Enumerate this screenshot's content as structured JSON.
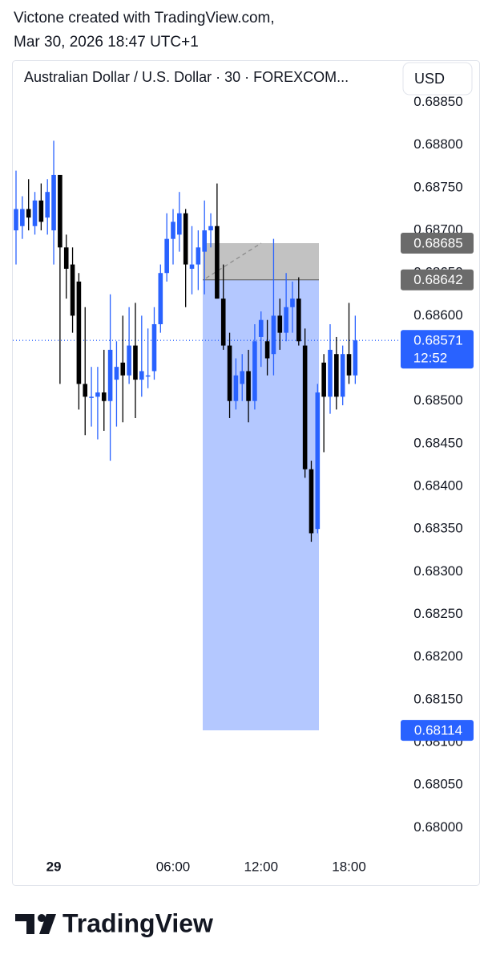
{
  "header": {
    "line1": "Victone created with TradingView.com,",
    "line2": "Mar 30, 2026 18:47 UTC+1"
  },
  "chart_data": {
    "type": "candlestick",
    "title": "Australian Dollar / U.S. Dollar · 30 · FOREXCOM...",
    "currency": "USD",
    "categories": [
      null,
      null,
      null,
      null,
      null,
      null,
      "29",
      null,
      null,
      null,
      null,
      null,
      null,
      null,
      null,
      null,
      null,
      null,
      null,
      null,
      null,
      null,
      null,
      null,
      null,
      "06:00",
      null,
      null,
      null,
      null,
      null,
      null,
      null,
      null,
      null,
      null,
      null,
      null,
      null,
      "12:00",
      null,
      null,
      null,
      null,
      null,
      null,
      null,
      null,
      null,
      null,
      null,
      null,
      null,
      "18:00",
      null
    ],
    "open": [
      0.687,
      0.68705,
      0.68725,
      0.68705,
      0.68735,
      0.68715,
      0.687,
      0.68765,
      0.6868,
      0.6866,
      0.6864,
      0.6852,
      0.68505,
      0.68505,
      0.6851,
      0.685,
      0.68525,
      0.68545,
      0.6853,
      0.68565,
      0.68525,
      0.6853,
      0.68535,
      0.6859,
      0.6865,
      0.6869,
      0.68695,
      0.6872,
      0.68655,
      0.6866,
      0.68675,
      0.687,
      0.68705,
      0.6862,
      0.68565,
      0.685,
      0.6852,
      0.68535,
      0.685,
      0.68575,
      0.6857,
      0.68555,
      0.686,
      0.6858,
      0.6861,
      0.6862,
      0.68565,
      0.6842,
      0.6835,
      0.68545,
      0.68505,
      0.68555,
      0.68505,
      0.68555,
      0.6853
    ],
    "high": [
      0.6877,
      0.6874,
      0.6876,
      0.68745,
      0.68755,
      0.6876,
      0.68805,
      0.68765,
      0.68695,
      0.6868,
      0.6865,
      0.6861,
      0.6854,
      0.6854,
      0.6856,
      0.68625,
      0.6857,
      0.686,
      0.6861,
      0.68615,
      0.686,
      0.68585,
      0.6861,
      0.6866,
      0.6872,
      0.68725,
      0.68745,
      0.68725,
      0.68705,
      0.687,
      0.68735,
      0.6872,
      0.68755,
      0.6866,
      0.6858,
      0.6855,
      0.68555,
      0.6856,
      0.6859,
      0.68605,
      0.68595,
      0.6869,
      0.6862,
      0.6865,
      0.6864,
      0.68645,
      0.68585,
      0.6843,
      0.6852,
      0.68555,
      0.6859,
      0.68575,
      0.68565,
      0.68615,
      0.686
    ],
    "low": [
      0.6866,
      0.6869,
      0.687,
      0.68695,
      0.687,
      0.68695,
      0.6866,
      0.6852,
      0.6862,
      0.6858,
      0.6849,
      0.6846,
      0.6847,
      0.68455,
      0.68465,
      0.6843,
      0.6847,
      0.68475,
      0.6852,
      0.6848,
      0.68505,
      0.68515,
      0.68525,
      0.6858,
      0.6864,
      0.6866,
      0.68675,
      0.6861,
      0.68625,
      0.6863,
      0.68625,
      0.6868,
      0.6862,
      0.6856,
      0.6848,
      0.6849,
      0.685,
      0.68475,
      0.6849,
      0.6854,
      0.6853,
      0.6853,
      0.6856,
      0.6857,
      0.6858,
      0.68565,
      0.6841,
      0.68335,
      0.68345,
      0.6844,
      0.68485,
      0.6849,
      0.68495,
      0.6852,
      0.6852
    ],
    "close": [
      0.68725,
      0.68725,
      0.68715,
      0.68735,
      0.6871,
      0.68745,
      0.68765,
      0.6868,
      0.68655,
      0.686,
      0.6852,
      0.68505,
      0.68505,
      0.6851,
      0.685,
      0.6856,
      0.6854,
      0.6853,
      0.68565,
      0.68525,
      0.68535,
      0.6853,
      0.6859,
      0.6865,
      0.6869,
      0.6871,
      0.6872,
      0.6866,
      0.6866,
      0.6868,
      0.687,
      0.68705,
      0.6862,
      0.68565,
      0.685,
      0.6853,
      0.68535,
      0.685,
      0.6857,
      0.68595,
      0.6855,
      0.686,
      0.6858,
      0.6861,
      0.6862,
      0.6857,
      0.6842,
      0.68345,
      0.6851,
      0.68505,
      0.6856,
      0.68505,
      0.68555,
      0.6853,
      0.68571
    ],
    "up_color": "#2962ff",
    "down_color": "#000000",
    "ylim": [
      0.67973,
      0.68859
    ],
    "yticks": [
      {
        "value": 0.68,
        "label": "0.68000"
      },
      {
        "value": 0.6805,
        "label": "0.68050"
      },
      {
        "value": 0.681,
        "label": "0.68100"
      },
      {
        "value": 0.6815,
        "label": "0.68150"
      },
      {
        "value": 0.682,
        "label": "0.68200"
      },
      {
        "value": 0.6825,
        "label": "0.68250"
      },
      {
        "value": 0.683,
        "label": "0.68300"
      },
      {
        "value": 0.6835,
        "label": "0.68350"
      },
      {
        "value": 0.684,
        "label": "0.68400"
      },
      {
        "value": 0.6845,
        "label": "0.68450"
      },
      {
        "value": 0.685,
        "label": "0.68500"
      },
      {
        "value": 0.6855,
        "label": "0.68550"
      },
      {
        "value": 0.686,
        "label": "0.68600"
      },
      {
        "value": 0.6865,
        "label": "0.68650"
      },
      {
        "value": 0.687,
        "label": "0.68700"
      },
      {
        "value": 0.6875,
        "label": "0.68750"
      },
      {
        "value": 0.688,
        "label": "0.68800"
      },
      {
        "value": 0.6885,
        "label": "0.68850"
      }
    ],
    "last_price": 0.68571,
    "countdown": "12:52",
    "position": {
      "stop": 0.68685,
      "entry": 0.68642,
      "target": 0.68114
    }
  },
  "footer": {
    "brand": "TradingView"
  }
}
